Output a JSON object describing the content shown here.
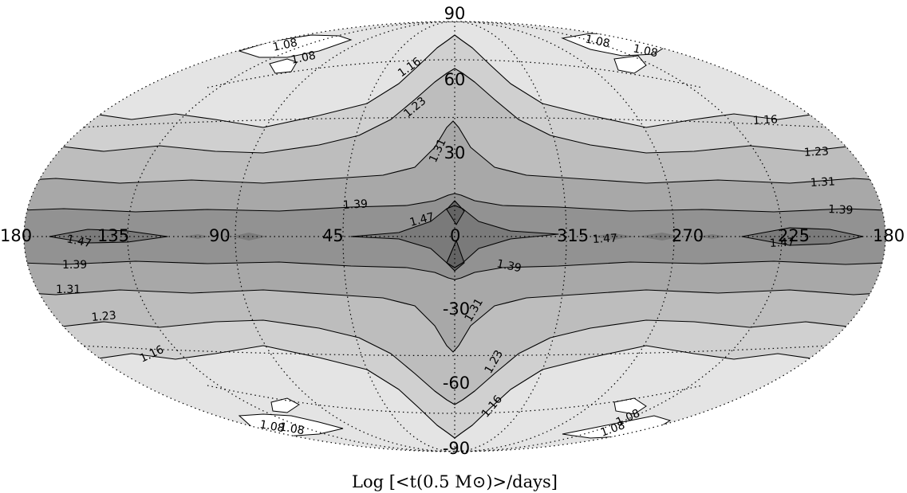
{
  "map": {
    "projection": "Hammer-Aitoff, galactic coordinates",
    "colorbar_title": "Log [<t(0.5 M⊙)>/days]",
    "latitude_ticks": [
      "90",
      "60",
      "30",
      "0",
      "-30",
      "-60",
      "-90"
    ],
    "longitude_ticks": [
      "180",
      "135",
      "90",
      "45",
      "0",
      "315",
      "270",
      "225",
      "180"
    ],
    "contour_levels": [
      "1.08",
      "1.16",
      "1.23",
      "1.31",
      "1.39",
      "1.47"
    ],
    "fill_colors": {
      "below_1.08": "#ffffff",
      "1.08_to_1.16": "#e4e4e4",
      "1.16_to_1.23": "#d0d0d0",
      "1.23_to_1.31": "#bdbdbd",
      "1.31_to_1.39": "#a8a8a8",
      "1.39_to_1.47": "#929292",
      "above_1.47": "#7a7a7a"
    },
    "contour_labels_shown": [
      "1.08",
      "1.08",
      "1.08",
      "1.08",
      "1.16",
      "1.23",
      "1.31",
      "1.39",
      "1.47",
      "1.16",
      "1.23",
      "1.31",
      "1.39",
      "1.47",
      "1.47",
      "1.47",
      "1.39",
      "1.31",
      "1.23",
      "1.16",
      "1.39",
      "1.31",
      "1.23",
      "1.16",
      "1.08",
      "1.08",
      "1.08",
      "1.08"
    ]
  }
}
